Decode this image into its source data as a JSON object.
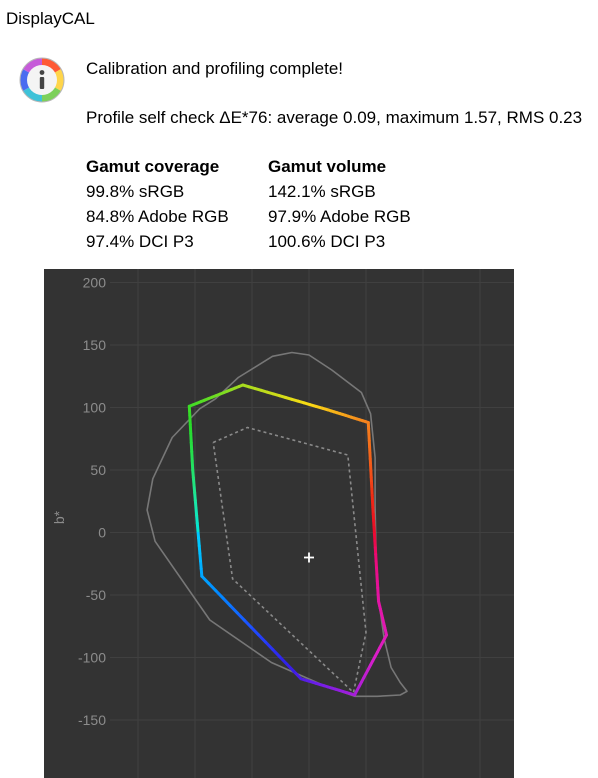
{
  "window": {
    "app_title": "DisplayCAL"
  },
  "status": {
    "icon": "info-icon",
    "heading": "Calibration and profiling complete!",
    "self_check": "Profile self check ΔE*76: average 0.09, maximum 1.57, RMS 0.23"
  },
  "gamut": {
    "coverage": {
      "title": "Gamut coverage",
      "items": [
        "99.8% sRGB",
        "84.8% Adobe RGB",
        "97.4% DCI P3"
      ]
    },
    "volume": {
      "title": "Gamut volume",
      "items": [
        "142.1% sRGB",
        "97.9% Adobe RGB",
        "100.6% DCI P3"
      ]
    }
  },
  "chart_data": {
    "type": "line",
    "ylabel": "b*",
    "xlabel": "",
    "y_ticks": [
      "200",
      "150",
      "100",
      "50",
      "0",
      "-50",
      "-100",
      "-150"
    ],
    "ylim": [
      -195,
      210
    ],
    "xlim": [
      -160,
      155
    ],
    "grid": true,
    "background": "#333333",
    "series": [
      {
        "role": "display-gamut",
        "style": "colored-solid",
        "points": [
          [
            -105,
            101
          ],
          [
            -58,
            118
          ],
          [
            17,
            98
          ],
          [
            52,
            88
          ],
          [
            56,
            20
          ],
          [
            61,
            -55
          ],
          [
            68,
            -82
          ],
          [
            40,
            -130
          ],
          [
            -7,
            -117
          ],
          [
            -94,
            -35
          ],
          [
            -102,
            50
          ],
          [
            -105,
            101
          ]
        ]
      },
      {
        "role": "reference-gamut",
        "style": "gray-dotted",
        "points": [
          [
            -84,
            72
          ],
          [
            -54,
            84
          ],
          [
            34,
            62
          ],
          [
            50,
            -80
          ],
          [
            39,
            -128
          ],
          [
            -67,
            -37
          ],
          [
            -84,
            72
          ]
        ]
      },
      {
        "role": "visible-spectrum",
        "style": "gray-solid",
        "points": [
          [
            -82,
            107
          ],
          [
            -62,
            124
          ],
          [
            -32,
            141
          ],
          [
            -15,
            144
          ],
          [
            0,
            142
          ],
          [
            20,
            130
          ],
          [
            46,
            112
          ],
          [
            54,
            95
          ],
          [
            58,
            60
          ],
          [
            58,
            20
          ],
          [
            59,
            -25
          ],
          [
            62,
            -60
          ],
          [
            66,
            -85
          ],
          [
            72,
            -108
          ],
          [
            80,
            -120
          ],
          [
            86,
            -127
          ],
          [
            80,
            -130
          ],
          [
            60,
            -131
          ],
          [
            40,
            -131
          ],
          [
            12,
            -122
          ],
          [
            -33,
            -104
          ],
          [
            -87,
            -70
          ],
          [
            -135,
            -7
          ],
          [
            -142,
            18
          ],
          [
            -137,
            43
          ],
          [
            -120,
            76
          ],
          [
            -96,
            99
          ],
          [
            -82,
            107
          ]
        ]
      }
    ],
    "marker": {
      "type": "white-point",
      "a": 0,
      "b": -20
    }
  }
}
